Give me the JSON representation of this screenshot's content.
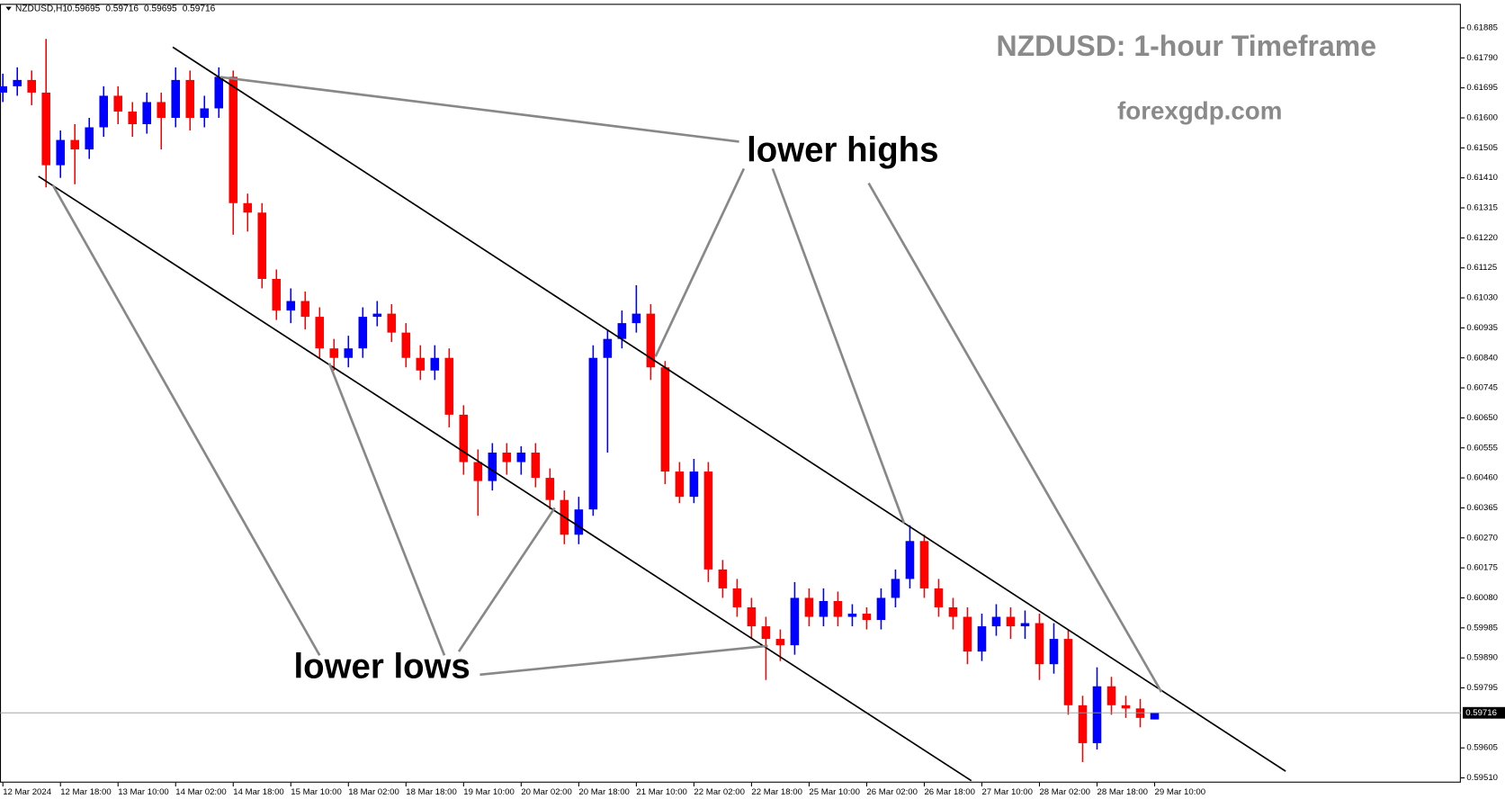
{
  "chart_data": {
    "type": "candlestick",
    "symbol": "NZDUSD,H1",
    "title": "NZDUSD: 1-hour Timeframe",
    "subtitle": "forexgdp.com",
    "up_color": "#0000ff",
    "down_color": "#ff0000",
    "open": [
      0.6168,
      0.617,
      0.6172,
      0.6168,
      0.6145,
      0.6153,
      0.615,
      0.6157,
      0.6167,
      0.6162,
      0.6158,
      0.6165,
      0.616,
      0.6172,
      0.616,
      0.6163,
      0.6173,
      0.6133,
      0.613,
      0.6109,
      0.6099,
      0.6102,
      0.6097,
      0.6087,
      0.6084,
      0.6087,
      0.6097,
      0.6098,
      0.6092,
      0.6084,
      0.608,
      0.6084,
      0.6066,
      0.6051,
      0.6045,
      0.6054,
      0.6051,
      0.6054,
      0.6046,
      0.6039,
      0.6028,
      0.6036,
      0.6084,
      0.609,
      0.6095,
      0.6098,
      0.6081,
      0.6048,
      0.604,
      0.6048,
      0.6017,
      0.6011,
      0.6005,
      0.5999,
      0.5995,
      0.5993,
      0.6008,
      0.6002,
      0.6007,
      0.6002,
      0.6003,
      0.6001,
      0.6008,
      0.6014,
      0.6026,
      0.6011,
      0.6005,
      0.6002,
      0.5991,
      0.5999,
      0.6002,
      0.5999,
      0.6,
      0.5987,
      0.5995,
      0.5974,
      0.5962,
      0.598,
      0.5974,
      0.5973,
      0.59695
    ],
    "high": [
      0.6174,
      0.6176,
      0.6175,
      0.6185,
      0.6156,
      0.6158,
      0.616,
      0.617,
      0.617,
      0.6165,
      0.6168,
      0.6168,
      0.6176,
      0.6175,
      0.6167,
      0.6176,
      0.6175,
      0.6136,
      0.6133,
      0.6112,
      0.6106,
      0.6105,
      0.61,
      0.609,
      0.6091,
      0.61,
      0.6102,
      0.6101,
      0.6095,
      0.6088,
      0.6088,
      0.6087,
      0.6069,
      0.6055,
      0.6057,
      0.6057,
      0.6056,
      0.6057,
      0.6049,
      0.6042,
      0.604,
      0.6088,
      0.6093,
      0.6099,
      0.6107,
      0.6101,
      0.6083,
      0.6051,
      0.6052,
      0.6051,
      0.602,
      0.6014,
      0.6008,
      0.6002,
      0.5998,
      0.6013,
      0.6011,
      0.6011,
      0.601,
      0.6006,
      0.6005,
      0.6011,
      0.6017,
      0.6031,
      0.6028,
      0.6014,
      0.6008,
      0.6005,
      0.6003,
      0.6006,
      0.6005,
      0.6004,
      0.6003,
      0.6,
      0.5998,
      0.5977,
      0.5986,
      0.5983,
      0.5977,
      0.5976,
      0.59716
    ],
    "low": [
      0.6165,
      0.6167,
      0.6164,
      0.6138,
      0.6141,
      0.6139,
      0.6147,
      0.6154,
      0.6158,
      0.6154,
      0.6155,
      0.615,
      0.6157,
      0.6156,
      0.6157,
      0.616,
      0.6123,
      0.6124,
      0.6106,
      0.6096,
      0.6095,
      0.6093,
      0.6084,
      0.608,
      0.6081,
      0.6084,
      0.6094,
      0.6089,
      0.6081,
      0.6077,
      0.6077,
      0.6062,
      0.6047,
      0.6034,
      0.6042,
      0.6047,
      0.6047,
      0.6043,
      0.6036,
      0.6025,
      0.6025,
      0.6034,
      0.6054,
      0.6087,
      0.6092,
      0.6077,
      0.6044,
      0.6038,
      0.6038,
      0.6013,
      0.6008,
      0.6002,
      0.5995,
      0.5982,
      0.5988,
      0.599,
      0.5999,
      0.5999,
      0.5999,
      0.5999,
      0.5998,
      0.5998,
      0.6005,
      0.6011,
      0.6008,
      0.6002,
      0.5998,
      0.5987,
      0.5988,
      0.5996,
      0.5995,
      0.5995,
      0.5982,
      0.5984,
      0.5971,
      0.5956,
      0.596,
      0.5971,
      0.597,
      0.5967,
      0.59695
    ],
    "close": [
      0.617,
      0.6172,
      0.6168,
      0.6145,
      0.6153,
      0.615,
      0.6157,
      0.6167,
      0.6162,
      0.6158,
      0.6165,
      0.616,
      0.6172,
      0.616,
      0.6163,
      0.6173,
      0.6133,
      0.613,
      0.6109,
      0.6099,
      0.6102,
      0.6097,
      0.6087,
      0.6084,
      0.6087,
      0.6097,
      0.6098,
      0.6092,
      0.6084,
      0.608,
      0.6084,
      0.6066,
      0.6051,
      0.6045,
      0.6054,
      0.6051,
      0.6054,
      0.6046,
      0.6039,
      0.6028,
      0.6036,
      0.6084,
      0.609,
      0.6095,
      0.6098,
      0.6081,
      0.6048,
      0.604,
      0.6048,
      0.6017,
      0.6011,
      0.6005,
      0.5999,
      0.5995,
      0.5993,
      0.6008,
      0.6002,
      0.6007,
      0.6002,
      0.6003,
      0.6001,
      0.6008,
      0.6014,
      0.6026,
      0.6011,
      0.6005,
      0.6002,
      0.5991,
      0.5999,
      0.6002,
      0.5999,
      0.6,
      0.5987,
      0.5995,
      0.5974,
      0.5962,
      0.598,
      0.5974,
      0.5973,
      0.597,
      0.59716
    ],
    "xlim": [
      -0.2,
      101.27
    ],
    "ylim": [
      0.59495,
      0.61961
    ],
    "xticks": [
      {
        "value": 0,
        "label": "12 Mar 2024"
      },
      {
        "value": 4,
        "label": "12 Mar 18:00"
      },
      {
        "value": 8,
        "label": "13 Mar 10:00"
      },
      {
        "value": 12,
        "label": "14 Mar 02:00"
      },
      {
        "value": 16,
        "label": "14 Mar 18:00"
      },
      {
        "value": 20,
        "label": "15 Mar 10:00"
      },
      {
        "value": 24,
        "label": "18 Mar 02:00"
      },
      {
        "value": 28,
        "label": "18 Mar 18:00"
      },
      {
        "value": 32,
        "label": "19 Mar 10:00"
      },
      {
        "value": 36,
        "label": "20 Mar 02:00"
      },
      {
        "value": 40,
        "label": "20 Mar 18:00"
      },
      {
        "value": 44,
        "label": "21 Mar 10:00"
      },
      {
        "value": 48,
        "label": "22 Mar 02:00"
      },
      {
        "value": 52,
        "label": "22 Mar 18:00"
      },
      {
        "value": 56,
        "label": "25 Mar 10:00"
      },
      {
        "value": 60,
        "label": "26 Mar 02:00"
      },
      {
        "value": 64,
        "label": "26 Mar 18:00"
      },
      {
        "value": 68,
        "label": "27 Mar 10:00"
      },
      {
        "value": 72,
        "label": "28 Mar 02:00"
      },
      {
        "value": 76,
        "label": "28 Mar 18:00"
      },
      {
        "value": 80,
        "label": "29 Mar 10:00"
      }
    ],
    "yticks": [
      {
        "value": 0.5951,
        "label": "0.59510"
      },
      {
        "value": 0.59605,
        "label": "0.59605"
      },
      {
        "value": 0.59795,
        "label": "0.59795"
      },
      {
        "value": 0.5989,
        "label": "0.59890"
      },
      {
        "value": 0.59985,
        "label": "0.59985"
      },
      {
        "value": 0.6008,
        "label": "0.60080"
      },
      {
        "value": 0.60175,
        "label": "0.60175"
      },
      {
        "value": 0.6027,
        "label": "0.60270"
      },
      {
        "value": 0.60365,
        "label": "0.60365"
      },
      {
        "value": 0.6046,
        "label": "0.60460"
      },
      {
        "value": 0.60555,
        "label": "0.60555"
      },
      {
        "value": 0.6065,
        "label": "0.60650"
      },
      {
        "value": 0.60745,
        "label": "0.60745"
      },
      {
        "value": 0.6084,
        "label": "0.60840"
      },
      {
        "value": 0.60935,
        "label": "0.60935"
      },
      {
        "value": 0.6103,
        "label": "0.61030"
      },
      {
        "value": 0.61125,
        "label": "0.61125"
      },
      {
        "value": 0.6122,
        "label": "0.61220"
      },
      {
        "value": 0.61315,
        "label": "0.61315"
      },
      {
        "value": 0.6141,
        "label": "0.61410"
      },
      {
        "value": 0.61505,
        "label": "0.61505"
      },
      {
        "value": 0.616,
        "label": "0.61600"
      },
      {
        "value": 0.61695,
        "label": "0.61695"
      },
      {
        "value": 0.6179,
        "label": "0.61790"
      },
      {
        "value": 0.61885,
        "label": "0.61885"
      }
    ],
    "trendlines": [
      {
        "points": [
          [
            11.8,
            0.61824
          ],
          [
            89.1,
            0.59531
          ]
        ]
      },
      {
        "points": [
          [
            2.47,
            0.61415
          ],
          [
            67.27,
            0.59501
          ]
        ]
      }
    ],
    "annotations": [
      {
        "text": "lower highs",
        "targets": [
          [
            15.13,
            0.61729
          ],
          [
            45.33,
            0.60844
          ],
          [
            62.6,
            0.60316
          ],
          [
            80.47,
            0.59782
          ]
        ]
      },
      {
        "text": "lower lows",
        "targets": [
          [
            3.47,
            0.61387
          ],
          [
            22.67,
            0.60823
          ],
          [
            38.33,
            0.60365
          ],
          [
            53.13,
            0.59928
          ]
        ]
      }
    ]
  }
}
